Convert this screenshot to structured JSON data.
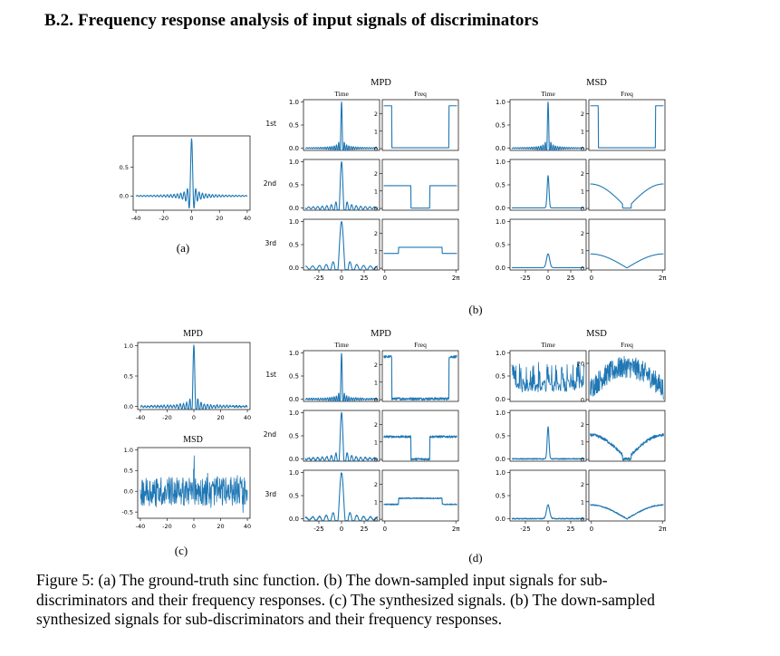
{
  "section": {
    "number": "B.2.",
    "title": "Frequency response analysis of input signals of discriminators"
  },
  "figure": {
    "panel_labels": [
      "(a)",
      "(b)",
      "(c)",
      "(d)"
    ],
    "group_headers": {
      "mpd": "MPD",
      "msd": "MSD"
    },
    "column_headers": {
      "time": "Time",
      "freq": "Freq"
    },
    "row_labels": [
      "1st",
      "2nd",
      "3rd"
    ],
    "panel_c_titles": [
      "MPD",
      "MSD"
    ],
    "time_ticks": [
      "-25",
      "0",
      "25"
    ],
    "freq_ticks": [
      "0",
      "2π"
    ],
    "sinc_ticks": [
      "-40",
      "-20",
      "0",
      "20",
      "40"
    ],
    "y_ticks_unit": [
      "0.0",
      "0.5",
      "1.0"
    ],
    "y_ticks_freq": [
      "0",
      "1",
      "2"
    ],
    "y_ticks_freq_big": [
      "0",
      "20"
    ],
    "y_ticks_msd_c": [
      "-0.5",
      "0.0",
      "0.5",
      "1.0"
    ],
    "y_ticks_a": [
      "0.0",
      "0.5"
    ],
    "colors": {
      "line": "#1f77b4",
      "axis": "#000000"
    }
  },
  "chart_data": [
    {
      "id": "a",
      "type": "line",
      "title": "",
      "series": [
        {
          "function": "sinc",
          "x_range": [
            -40,
            40
          ]
        }
      ],
      "xlim": [
        -42,
        42
      ],
      "ylim": [
        -0.25,
        1.05
      ]
    },
    {
      "id": "b",
      "type": "line",
      "groups": [
        "MPD",
        "MSD"
      ],
      "rows": [
        "1st",
        "2nd",
        "3rd"
      ],
      "time_xlim": [
        -40,
        40
      ],
      "freq_xlim": [
        "0",
        "2π"
      ],
      "mpd_freq_levels": [
        {
          "row": "1st",
          "high": 2.5,
          "low": 0,
          "passband": [
            0.11,
            0.89
          ]
        },
        {
          "row": "2nd",
          "high": 1.3,
          "low": 0,
          "stopband": [
            0.37,
            0.63
          ]
        },
        {
          "row": "3rd",
          "high": 1.2,
          "low": 0.8,
          "band": [
            0.2,
            0.8
          ]
        }
      ]
    },
    {
      "id": "c",
      "type": "line",
      "series": [
        {
          "name": "MPD",
          "x_range": [
            -40,
            40
          ],
          "ylim": [
            0,
            1.0
          ]
        },
        {
          "name": "MSD",
          "x_range": [
            -40,
            40
          ],
          "ylim": [
            -0.5,
            1.0
          ]
        }
      ]
    },
    {
      "id": "d",
      "type": "line",
      "groups": [
        "MPD",
        "MSD"
      ],
      "rows": [
        "1st",
        "2nd",
        "3rd"
      ],
      "msd_1st_freq_ylim": [
        0,
        25
      ]
    }
  ],
  "caption": {
    "lines": [
      "Figure 5:  (a) The ground-truth sinc function.  (b) The down-sampled input signals for sub-",
      "discriminators and their frequency responses. (c) The synthesized signals. (b) The down-sampled",
      "synthesized signals for sub-discriminators and their frequency responses."
    ]
  }
}
